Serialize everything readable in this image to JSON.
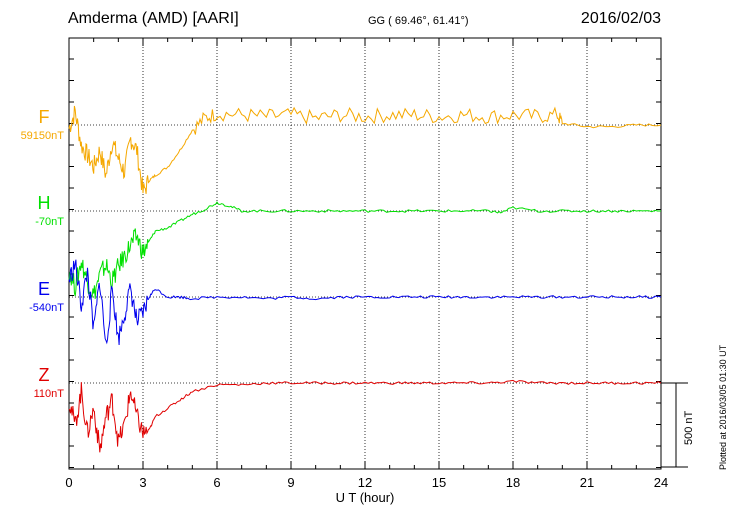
{
  "header": {
    "station": "Amderma (AMD)  [AARI]",
    "coords": "GG ( 69.46°,  61.41°)",
    "date": "2016/02/03"
  },
  "plotted_note": "Plotted at 2016/03/05 01:30 UT",
  "scale_label": "500 nT",
  "chart_data": {
    "type": "line",
    "xlabel": "U T (hour)",
    "xlim": [
      0,
      24
    ],
    "xticks": [
      "0",
      "3",
      "6",
      "9",
      "12",
      "15",
      "18",
      "21",
      "24"
    ],
    "scale_bar_nT": 500,
    "series": [
      {
        "name": "F",
        "baseline": "59150nT",
        "color": "#f5a800",
        "points": [
          [
            0,
            -20
          ],
          [
            0.25,
            80
          ],
          [
            0.5,
            -120
          ],
          [
            0.75,
            -180
          ],
          [
            1.0,
            -250
          ],
          [
            1.25,
            -150
          ],
          [
            1.5,
            -300
          ],
          [
            1.75,
            -100
          ],
          [
            2.0,
            -200
          ],
          [
            2.25,
            -280
          ],
          [
            2.5,
            -80
          ],
          [
            2.75,
            -150
          ],
          [
            3.0,
            -400
          ],
          [
            3.25,
            -330
          ],
          [
            3.5,
            -300
          ],
          [
            4.0,
            -250
          ],
          [
            4.5,
            -150
          ],
          [
            5.0,
            -30
          ],
          [
            5.5,
            40
          ],
          [
            6.0,
            70
          ],
          [
            7.0,
            60
          ],
          [
            8.0,
            50
          ],
          [
            9.0,
            60
          ],
          [
            10.0,
            40
          ],
          [
            11.0,
            60
          ],
          [
            12.0,
            50
          ],
          [
            13.0,
            60
          ],
          [
            14.0,
            60
          ],
          [
            15.0,
            50
          ],
          [
            16.0,
            60
          ],
          [
            17.0,
            50
          ],
          [
            18.0,
            60
          ],
          [
            19.0,
            50
          ],
          [
            19.8,
            60
          ],
          [
            20.0,
            10
          ],
          [
            21.0,
            -10
          ],
          [
            22.0,
            -10
          ],
          [
            23.0,
            0
          ],
          [
            24.0,
            0
          ]
        ]
      },
      {
        "name": "H",
        "baseline": "-70nT",
        "color": "#00e000",
        "points": [
          [
            0,
            -350
          ],
          [
            0.25,
            -450
          ],
          [
            0.5,
            -300
          ],
          [
            0.75,
            -420
          ],
          [
            1.0,
            -500
          ],
          [
            1.25,
            -380
          ],
          [
            1.5,
            -320
          ],
          [
            1.75,
            -420
          ],
          [
            2.0,
            -330
          ],
          [
            2.25,
            -270
          ],
          [
            2.5,
            -200
          ],
          [
            2.75,
            -150
          ],
          [
            3.0,
            -250
          ],
          [
            3.25,
            -180
          ],
          [
            3.5,
            -120
          ],
          [
            4.0,
            -100
          ],
          [
            4.5,
            -60
          ],
          [
            5.0,
            -20
          ],
          [
            5.5,
            10
          ],
          [
            6.0,
            50
          ],
          [
            6.5,
            30
          ],
          [
            7.0,
            0
          ],
          [
            8.0,
            0
          ],
          [
            9.0,
            0
          ],
          [
            10.0,
            0
          ],
          [
            11.0,
            0
          ],
          [
            12.0,
            0
          ],
          [
            13.0,
            0
          ],
          [
            14.0,
            0
          ],
          [
            15.0,
            0
          ],
          [
            16.0,
            0
          ],
          [
            17.0,
            0
          ],
          [
            17.5,
            -10
          ],
          [
            18.0,
            20
          ],
          [
            19.0,
            0
          ],
          [
            20.0,
            0
          ],
          [
            21.0,
            0
          ],
          [
            22.0,
            0
          ],
          [
            23.0,
            0
          ],
          [
            24.0,
            0
          ]
        ]
      },
      {
        "name": "E",
        "baseline": "-540nT",
        "color": "#0000ee",
        "points": [
          [
            0,
            100
          ],
          [
            0.25,
            200
          ],
          [
            0.5,
            -50
          ],
          [
            0.75,
            150
          ],
          [
            1.0,
            -200
          ],
          [
            1.25,
            100
          ],
          [
            1.5,
            -300
          ],
          [
            1.75,
            50
          ],
          [
            2.0,
            -250
          ],
          [
            2.25,
            -100
          ],
          [
            2.5,
            50
          ],
          [
            2.75,
            -150
          ],
          [
            3.0,
            -100
          ],
          [
            3.25,
            0
          ],
          [
            3.5,
            50
          ],
          [
            4.0,
            0
          ],
          [
            4.5,
            0
          ],
          [
            5.0,
            -10
          ],
          [
            6.0,
            0
          ],
          [
            7.0,
            0
          ],
          [
            8.0,
            -10
          ],
          [
            9.0,
            0
          ],
          [
            10.0,
            -10
          ],
          [
            11.0,
            0
          ],
          [
            12.0,
            0
          ],
          [
            13.0,
            0
          ],
          [
            14.0,
            0
          ],
          [
            15.0,
            0
          ],
          [
            16.0,
            0
          ],
          [
            17.0,
            0
          ],
          [
            18.0,
            0
          ],
          [
            19.0,
            0
          ],
          [
            20.0,
            0
          ],
          [
            21.0,
            0
          ],
          [
            22.0,
            0
          ],
          [
            23.0,
            0
          ],
          [
            24.0,
            0
          ]
        ]
      },
      {
        "name": "Z",
        "baseline": "110nT",
        "color": "#e00000",
        "points": [
          [
            0,
            -100
          ],
          [
            0.25,
            -250
          ],
          [
            0.5,
            -50
          ],
          [
            0.75,
            -300
          ],
          [
            1.0,
            -150
          ],
          [
            1.25,
            -400
          ],
          [
            1.5,
            -200
          ],
          [
            1.75,
            -100
          ],
          [
            2.0,
            -350
          ],
          [
            2.25,
            -250
          ],
          [
            2.5,
            -50
          ],
          [
            2.75,
            -200
          ],
          [
            3.0,
            -300
          ],
          [
            3.25,
            -280
          ],
          [
            3.5,
            -200
          ],
          [
            4.0,
            -150
          ],
          [
            4.5,
            -100
          ],
          [
            5.0,
            -50
          ],
          [
            6.0,
            -10
          ],
          [
            7.0,
            -10
          ],
          [
            8.0,
            0
          ],
          [
            9.0,
            0
          ],
          [
            10.0,
            0
          ],
          [
            11.0,
            0
          ],
          [
            12.0,
            0
          ],
          [
            13.0,
            0
          ],
          [
            14.0,
            0
          ],
          [
            15.0,
            0
          ],
          [
            16.0,
            0
          ],
          [
            17.0,
            0
          ],
          [
            18.0,
            10
          ],
          [
            19.0,
            0
          ],
          [
            20.0,
            0
          ],
          [
            21.0,
            0
          ],
          [
            22.0,
            0
          ],
          [
            23.0,
            0
          ],
          [
            24.0,
            0
          ]
        ]
      }
    ]
  }
}
